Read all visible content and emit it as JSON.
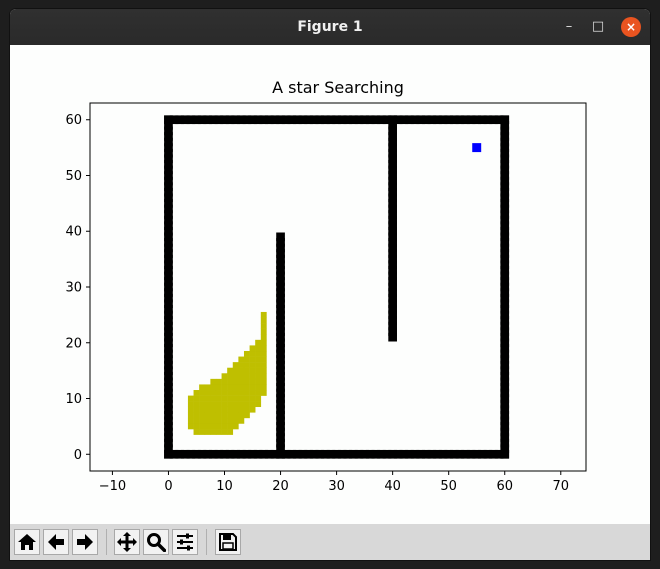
{
  "window": {
    "title": "Figure 1",
    "controls": {
      "minimize": "–",
      "maximize": "□",
      "close": "×"
    }
  },
  "toolbar": {
    "buttons": [
      {
        "name": "home-button",
        "icon": "home-icon"
      },
      {
        "name": "back-button",
        "icon": "arrow-left-icon"
      },
      {
        "name": "forward-button",
        "icon": "arrow-right-icon"
      },
      {
        "name": "pan-button",
        "icon": "move-icon"
      },
      {
        "name": "zoom-button",
        "icon": "magnifier-icon"
      },
      {
        "name": "configure-subplots-button",
        "icon": "sliders-icon"
      },
      {
        "name": "save-button",
        "icon": "floppy-disk-icon"
      }
    ]
  },
  "chart_data": {
    "type": "scatter",
    "title": "A star Searching",
    "xlabel": "",
    "ylabel": "",
    "xlim": [
      -14,
      74.5
    ],
    "ylim": [
      -3,
      63
    ],
    "xticks": [
      -10,
      0,
      10,
      20,
      30,
      40,
      50,
      60,
      70
    ],
    "yticks": [
      0,
      10,
      20,
      30,
      40,
      50,
      60
    ],
    "grid": false,
    "colors": {
      "obstacle": "#000000",
      "explored": "#bfbf00",
      "goal": "#0000ff"
    },
    "obstacles": [
      {
        "x": [
          0,
          60
        ],
        "y": [
          0,
          0
        ]
      },
      {
        "x": [
          0,
          60
        ],
        "y": [
          60,
          60
        ]
      },
      {
        "x": [
          0,
          0
        ],
        "y": [
          0,
          60
        ]
      },
      {
        "x": [
          60,
          60
        ],
        "y": [
          0,
          60
        ]
      },
      {
        "x": [
          20,
          20
        ],
        "y": [
          0,
          39
        ]
      },
      {
        "x": [
          40,
          40
        ],
        "y": [
          21,
          60
        ]
      }
    ],
    "explored": [
      {
        "x": 4,
        "y": [
          5,
          10
        ]
      },
      {
        "x": 5,
        "y": [
          4,
          11
        ]
      },
      {
        "x": 6,
        "y": [
          4,
          12
        ]
      },
      {
        "x": 7,
        "y": [
          4,
          12
        ]
      },
      {
        "x": 8,
        "y": [
          4,
          13
        ]
      },
      {
        "x": 9,
        "y": [
          4,
          13
        ]
      },
      {
        "x": 10,
        "y": [
          4,
          14
        ]
      },
      {
        "x": 11,
        "y": [
          4,
          15
        ]
      },
      {
        "x": 12,
        "y": [
          5,
          16
        ]
      },
      {
        "x": 13,
        "y": [
          6,
          17
        ]
      },
      {
        "x": 14,
        "y": [
          7,
          18
        ]
      },
      {
        "x": 15,
        "y": [
          8,
          19
        ]
      },
      {
        "x": 16,
        "y": [
          9,
          20
        ]
      },
      {
        "x": 17,
        "y": [
          11,
          25
        ]
      }
    ],
    "goal": {
      "x": 55,
      "y": 55
    }
  }
}
